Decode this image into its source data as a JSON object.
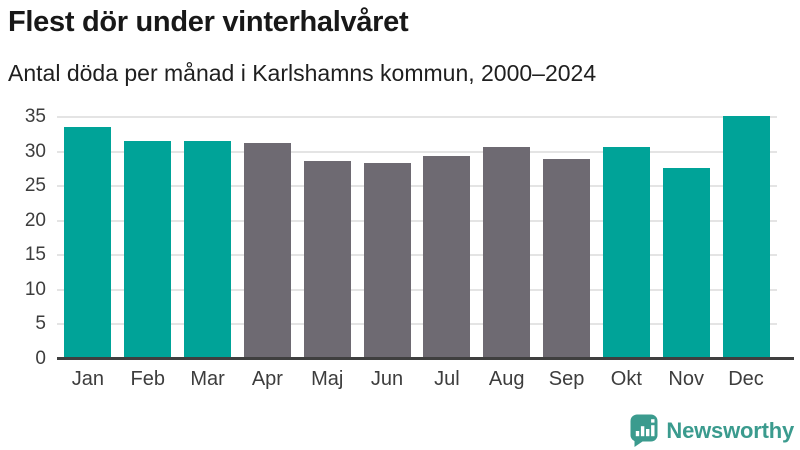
{
  "header": {
    "title": "Flest dör under vinterhalvåret",
    "subtitle": "Antal döda per månad i Karlshamns kommun, 2000–2024"
  },
  "chart_data": {
    "type": "bar",
    "title": "Flest dör under vinterhalvåret",
    "subtitle": "Antal döda per månad i Karlshamns kommun, 2000–2024",
    "categories": [
      "Jan",
      "Feb",
      "Mar",
      "Apr",
      "Maj",
      "Jun",
      "Jul",
      "Aug",
      "Sep",
      "Okt",
      "Nov",
      "Dec"
    ],
    "values": [
      33.5,
      31.6,
      31.6,
      31.3,
      28.6,
      28.3,
      29.4,
      30.6,
      29.0,
      30.7,
      27.6,
      35.2
    ],
    "bar_colors": [
      "#00a398",
      "#00a398",
      "#00a398",
      "#6e6a72",
      "#6e6a72",
      "#6e6a72",
      "#6e6a72",
      "#6e6a72",
      "#6e6a72",
      "#00a398",
      "#00a398",
      "#00a398"
    ],
    "highlight_color": "#00a398",
    "base_color": "#6e6a72",
    "highlighted_months": [
      "Jan",
      "Feb",
      "Mar",
      "Okt",
      "Nov",
      "Dec"
    ],
    "xlabel": "",
    "ylabel": "",
    "ylim": [
      0,
      35
    ],
    "yticks": [
      0,
      5,
      10,
      15,
      20,
      25,
      30,
      35
    ],
    "grid": "horizontal",
    "legend": "none"
  },
  "footer": {
    "brand": "Newsworthy",
    "brand_color": "#3b9b8e",
    "logo_icon": "bar-chart-exclamation-bubble-icon"
  }
}
